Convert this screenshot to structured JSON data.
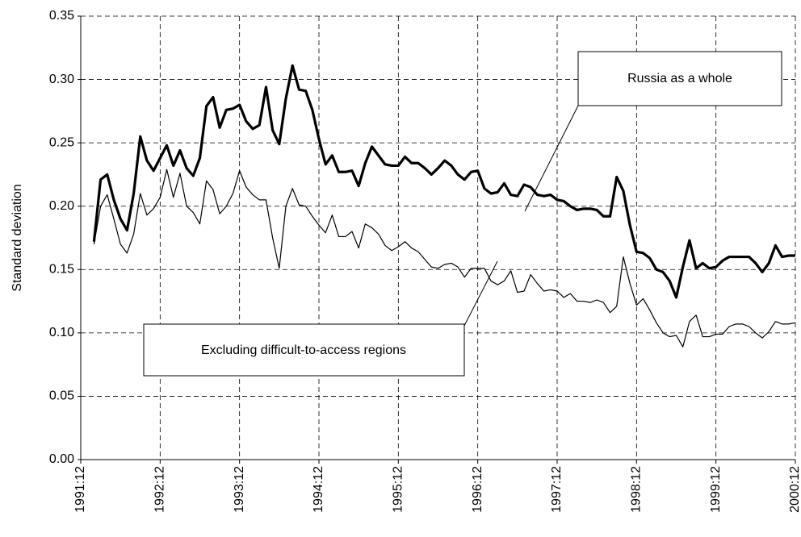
{
  "chart_data": {
    "type": "line",
    "ylabel": "Standard deviation",
    "categories": [
      "1991:12",
      null,
      null,
      null,
      null,
      null,
      null,
      null,
      null,
      null,
      null,
      null,
      "1992:12",
      null,
      null,
      null,
      null,
      null,
      null,
      null,
      null,
      null,
      null,
      null,
      "1993:12",
      null,
      null,
      null,
      null,
      null,
      null,
      null,
      null,
      null,
      null,
      null,
      "1994:12",
      null,
      null,
      null,
      null,
      null,
      null,
      null,
      null,
      null,
      null,
      null,
      "1995:12",
      null,
      null,
      null,
      null,
      null,
      null,
      null,
      null,
      null,
      null,
      null,
      "1996:12",
      null,
      null,
      null,
      null,
      null,
      null,
      null,
      null,
      null,
      null,
      null,
      "1997:12",
      null,
      null,
      null,
      null,
      null,
      null,
      null,
      null,
      null,
      null,
      null,
      "1998:12",
      null,
      null,
      null,
      null,
      null,
      null,
      null,
      null,
      null,
      null,
      null,
      "1999:12",
      null,
      null,
      null,
      null,
      null,
      null,
      null,
      null,
      null,
      null,
      null,
      "2000:12"
    ],
    "series": [
      {
        "name": "Russia as a whole",
        "color": "#000000",
        "linewidth": 3.2,
        "values": [
          null,
          null,
          0.172,
          0.221,
          0.225,
          0.205,
          0.19,
          0.181,
          0.21,
          0.255,
          0.236,
          0.228,
          0.238,
          0.248,
          0.232,
          0.244,
          0.23,
          0.224,
          0.238,
          0.279,
          0.286,
          0.262,
          0.276,
          0.277,
          0.28,
          0.267,
          0.261,
          0.264,
          0.294,
          0.26,
          0.249,
          0.285,
          0.311,
          0.292,
          0.291,
          0.276,
          0.253,
          0.233,
          0.24,
          0.227,
          0.227,
          0.228,
          0.216,
          0.234,
          0.247,
          0.24,
          0.233,
          0.232,
          0.232,
          0.239,
          0.234,
          0.234,
          0.23,
          0.225,
          0.23,
          0.236,
          0.232,
          0.225,
          0.221,
          0.227,
          0.228,
          0.214,
          0.21,
          0.211,
          0.218,
          0.209,
          0.208,
          0.217,
          0.215,
          0.209,
          0.208,
          0.209,
          0.205,
          0.204,
          0.2,
          0.197,
          0.198,
          0.198,
          0.197,
          0.192,
          0.192,
          0.223,
          0.212,
          0.185,
          0.164,
          0.163,
          0.159,
          0.15,
          0.148,
          0.141,
          0.128,
          0.152,
          0.173,
          0.151,
          0.155,
          0.151,
          0.152,
          0.157,
          0.16,
          0.16,
          0.16,
          0.16,
          0.155,
          0.148,
          0.155,
          0.169,
          0.16,
          0.161,
          0.161
        ]
      },
      {
        "name": "Excluding difficult-to-access regions",
        "color": "#000000",
        "linewidth": 1.2,
        "values": [
          null,
          null,
          0.17,
          0.2,
          0.209,
          0.19,
          0.17,
          0.163,
          0.178,
          0.21,
          0.193,
          0.198,
          0.207,
          0.229,
          0.207,
          0.226,
          0.2,
          0.195,
          0.186,
          0.22,
          0.213,
          0.194,
          0.2,
          0.21,
          0.228,
          0.215,
          0.209,
          0.205,
          0.205,
          0.175,
          0.151,
          0.2,
          0.214,
          0.201,
          0.2,
          0.192,
          0.185,
          0.179,
          0.193,
          0.176,
          0.176,
          0.18,
          0.167,
          0.186,
          0.183,
          0.178,
          0.169,
          0.165,
          0.168,
          0.172,
          0.167,
          0.164,
          0.158,
          0.152,
          0.151,
          0.154,
          0.155,
          0.152,
          0.144,
          0.151,
          0.151,
          0.151,
          0.141,
          0.138,
          0.141,
          0.149,
          0.132,
          0.133,
          0.146,
          0.139,
          0.133,
          0.134,
          0.133,
          0.128,
          0.131,
          0.125,
          0.125,
          0.124,
          0.126,
          0.124,
          0.116,
          0.121,
          0.16,
          0.139,
          0.122,
          0.127,
          0.118,
          0.108,
          0.1,
          0.097,
          0.098,
          0.089,
          0.109,
          0.114,
          0.097,
          0.097,
          0.099,
          0.099,
          0.105,
          0.107,
          0.107,
          0.105,
          0.1,
          0.096,
          0.101,
          0.109,
          0.107,
          0.107,
          0.108
        ]
      }
    ],
    "ylim": [
      0,
      0.35
    ],
    "yticks": [
      {
        "value": 0,
        "label": "0.00"
      },
      {
        "value": 0.05,
        "label": "0.05"
      },
      {
        "value": 0.1,
        "label": "0.10"
      },
      {
        "value": 0.15,
        "label": "0.15"
      },
      {
        "value": 0.2,
        "label": "0.20"
      },
      {
        "value": 0.25,
        "label": "0.25"
      },
      {
        "value": 0.3,
        "label": "0.30"
      },
      {
        "value": 0.35,
        "label": "0.35"
      }
    ],
    "grid": true
  }
}
